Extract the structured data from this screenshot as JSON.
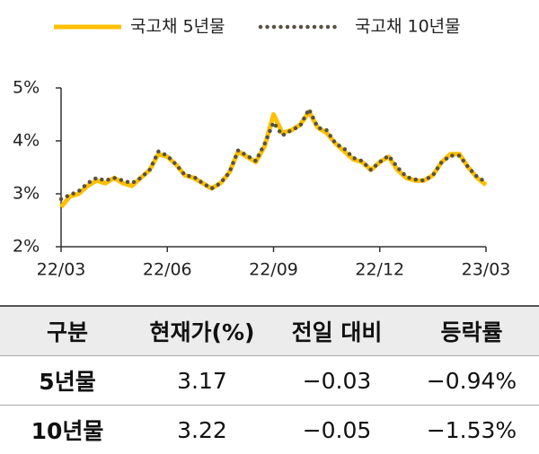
{
  "chart_data": {
    "type": "line",
    "x": [
      0,
      0.25,
      0.5,
      0.75,
      1,
      1.25,
      1.5,
      1.75,
      2,
      2.25,
      2.5,
      2.75,
      3,
      3.25,
      3.5,
      3.75,
      4,
      4.25,
      4.5,
      4.75,
      5,
      5.25,
      5.5,
      5.75,
      6,
      6.25,
      6.5,
      6.75,
      7,
      7.25,
      7.5,
      7.75,
      8,
      8.25,
      8.5,
      8.75,
      9,
      9.25,
      9.5,
      9.75,
      10,
      10.25,
      10.5,
      10.75,
      11,
      11.25,
      11.5,
      11.75,
      12
    ],
    "series": [
      {
        "name": "국고채 5년물",
        "color": "#ffc000",
        "style": "solid",
        "values": [
          2.75,
          2.95,
          3.0,
          3.15,
          3.25,
          3.2,
          3.3,
          3.2,
          3.15,
          3.3,
          3.45,
          3.75,
          3.7,
          3.55,
          3.35,
          3.3,
          3.2,
          3.1,
          3.2,
          3.4,
          3.8,
          3.7,
          3.6,
          3.9,
          4.5,
          4.15,
          4.2,
          4.3,
          4.55,
          4.25,
          4.15,
          3.95,
          3.8,
          3.65,
          3.6,
          3.45,
          3.6,
          3.7,
          3.45,
          3.3,
          3.25,
          3.25,
          3.35,
          3.6,
          3.75,
          3.75,
          3.5,
          3.3,
          3.17
        ]
      },
      {
        "name": "국고채 10년물",
        "color": "#595142",
        "style": "dotted",
        "values": [
          2.9,
          2.98,
          3.05,
          3.2,
          3.3,
          3.25,
          3.3,
          3.25,
          3.2,
          3.3,
          3.45,
          3.8,
          3.72,
          3.55,
          3.35,
          3.32,
          3.2,
          3.1,
          3.2,
          3.4,
          3.82,
          3.72,
          3.62,
          3.95,
          4.35,
          4.1,
          4.2,
          4.28,
          4.6,
          4.25,
          4.2,
          3.95,
          3.85,
          3.68,
          3.62,
          3.45,
          3.6,
          3.72,
          3.5,
          3.32,
          3.27,
          3.25,
          3.35,
          3.6,
          3.72,
          3.72,
          3.5,
          3.32,
          3.22
        ]
      }
    ],
    "xlim": [
      0,
      12
    ],
    "xticks": [
      {
        "value": 0,
        "label": "22/03"
      },
      {
        "value": 3,
        "label": "22/06"
      },
      {
        "value": 6,
        "label": "22/09"
      },
      {
        "value": 9,
        "label": "22/12"
      },
      {
        "value": 12,
        "label": "23/03"
      }
    ],
    "ylim": [
      2,
      5
    ],
    "yticks": [
      {
        "value": 2,
        "label": "2%"
      },
      {
        "value": 3,
        "label": "3%"
      },
      {
        "value": 4,
        "label": "4%"
      },
      {
        "value": 5,
        "label": "5%"
      }
    ],
    "grid": false
  },
  "table": {
    "header": [
      "구분",
      "현재가(%)",
      "전일 대비",
      "등락률"
    ],
    "rows": [
      [
        "5년물",
        "3.17",
        "−0.03",
        "−0.94%"
      ],
      [
        "10년물",
        "3.22",
        "−0.05",
        "−1.53%"
      ]
    ]
  }
}
